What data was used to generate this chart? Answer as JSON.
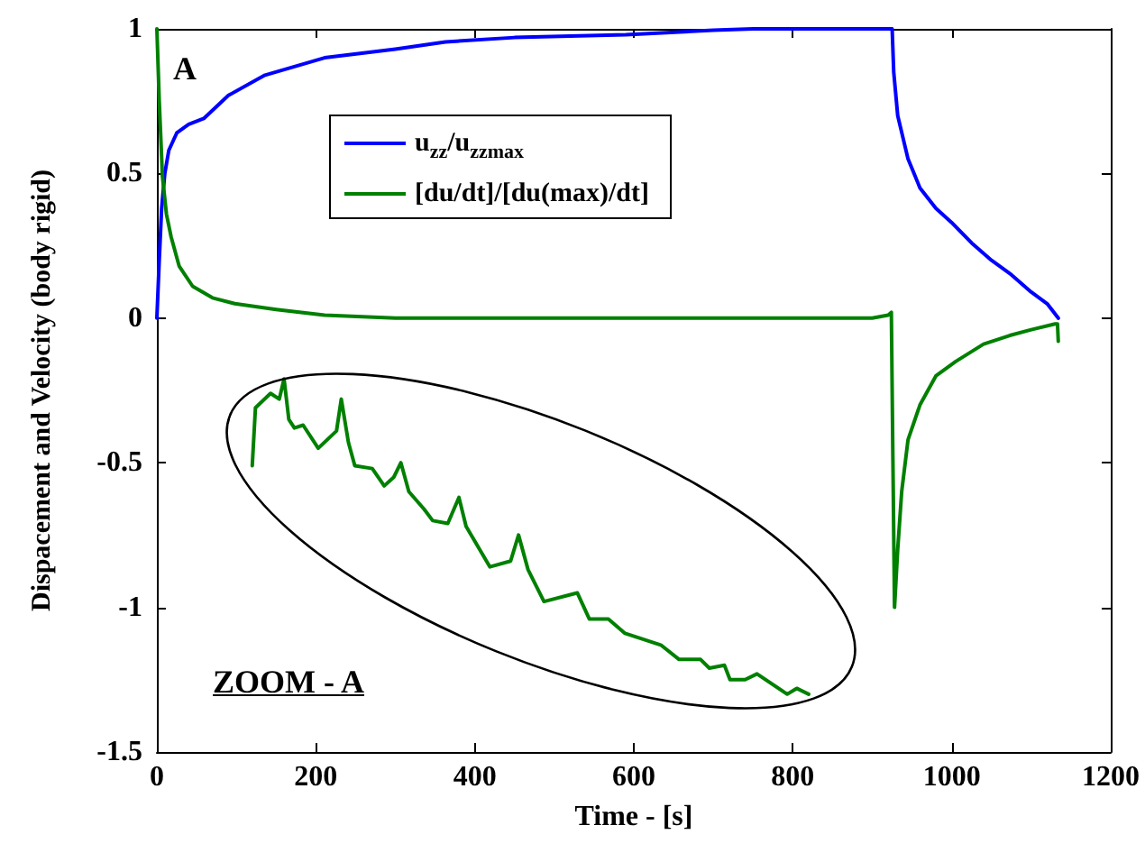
{
  "chart_data": {
    "type": "line",
    "xlabel": "Time - [s]",
    "ylabel": "Dispacement and Velocity (body rigid)",
    "annotations": [
      "A",
      "ZOOM - A"
    ],
    "xlim": [
      0,
      1200
    ],
    "xticks": [
      0,
      200,
      400,
      600,
      800,
      1000,
      1200
    ],
    "ylim": [
      -1.5,
      1
    ],
    "yticks": [
      -1.5,
      -1,
      -0.5,
      0,
      0.5,
      1
    ],
    "grid": false,
    "legend": "top",
    "marker": "none",
    "line_style": "solid",
    "series": [
      {
        "name": "u$_{zz}$/u$_{zzmax}$",
        "color": "#0000ff",
        "x": [
          0,
          3,
          6,
          10,
          15,
          25,
          40,
          59,
          90,
          136,
          211,
          300,
          363,
          450,
          590,
          700,
          750,
          925,
          927,
          932,
          945,
          960,
          980,
          1000,
          1025,
          1050,
          1075,
          1100,
          1120,
          1134
        ],
        "values": [
          0,
          0.2,
          0.38,
          0.5,
          0.58,
          0.64,
          0.67,
          0.69,
          0.77,
          0.84,
          0.9,
          0.93,
          0.955,
          0.97,
          0.98,
          0.995,
          1,
          1,
          0.85,
          0.7,
          0.55,
          0.45,
          0.38,
          0.33,
          0.26,
          0.2,
          0.15,
          0.09,
          0.05,
          0
        ]
      },
      {
        "name": "[du/dt]/[du(max)/dt]",
        "color": "#008000",
        "x": [
          0,
          3,
          7,
          12,
          18,
          28,
          45,
          70,
          98,
          150,
          211,
          300,
          500,
          700,
          900,
          920,
          924,
          926,
          928,
          932,
          937,
          945,
          960,
          980,
          1005,
          1040,
          1073,
          1100,
          1130,
          1133,
          1134
        ],
        "values": [
          1,
          0.75,
          0.49,
          0.36,
          0.28,
          0.18,
          0.11,
          0.07,
          0.05,
          0.03,
          0.01,
          0,
          0,
          0,
          0,
          0.01,
          0.02,
          -0.5,
          -1,
          -0.8,
          -0.6,
          -0.42,
          -0.3,
          -0.2,
          -0.15,
          -0.09,
          -0.06,
          -0.04,
          -0.02,
          -0.02,
          -0.08
        ]
      },
      {
        "color": "#008000",
        "x": [
          120,
          124,
          143,
          154,
          160,
          166,
          173,
          184,
          203,
          226,
          232,
          241,
          249,
          271,
          286,
          298,
          307,
          317,
          336,
          347,
          366,
          380,
          389,
          419,
          445,
          455,
          467,
          487,
          529,
          544,
          568,
          589,
          634,
          657,
          684,
          695,
          714,
          721,
          740,
          755,
          793,
          805,
          820
        ],
        "values": [
          -0.51,
          -0.31,
          -0.26,
          -0.28,
          -0.21,
          -0.35,
          -0.38,
          -0.37,
          -0.45,
          -0.39,
          -0.28,
          -0.43,
          -0.51,
          -0.52,
          -0.58,
          -0.55,
          -0.5,
          -0.6,
          -0.66,
          -0.7,
          -0.71,
          -0.62,
          -0.72,
          -0.86,
          -0.84,
          -0.75,
          -0.87,
          -0.98,
          -0.95,
          -1.04,
          -1.04,
          -1.09,
          -1.13,
          -1.18,
          -1.18,
          -1.21,
          -1.2,
          -1.25,
          -1.25,
          -1.23,
          -1.3,
          -1.28,
          -1.3
        ]
      }
    ]
  }
}
